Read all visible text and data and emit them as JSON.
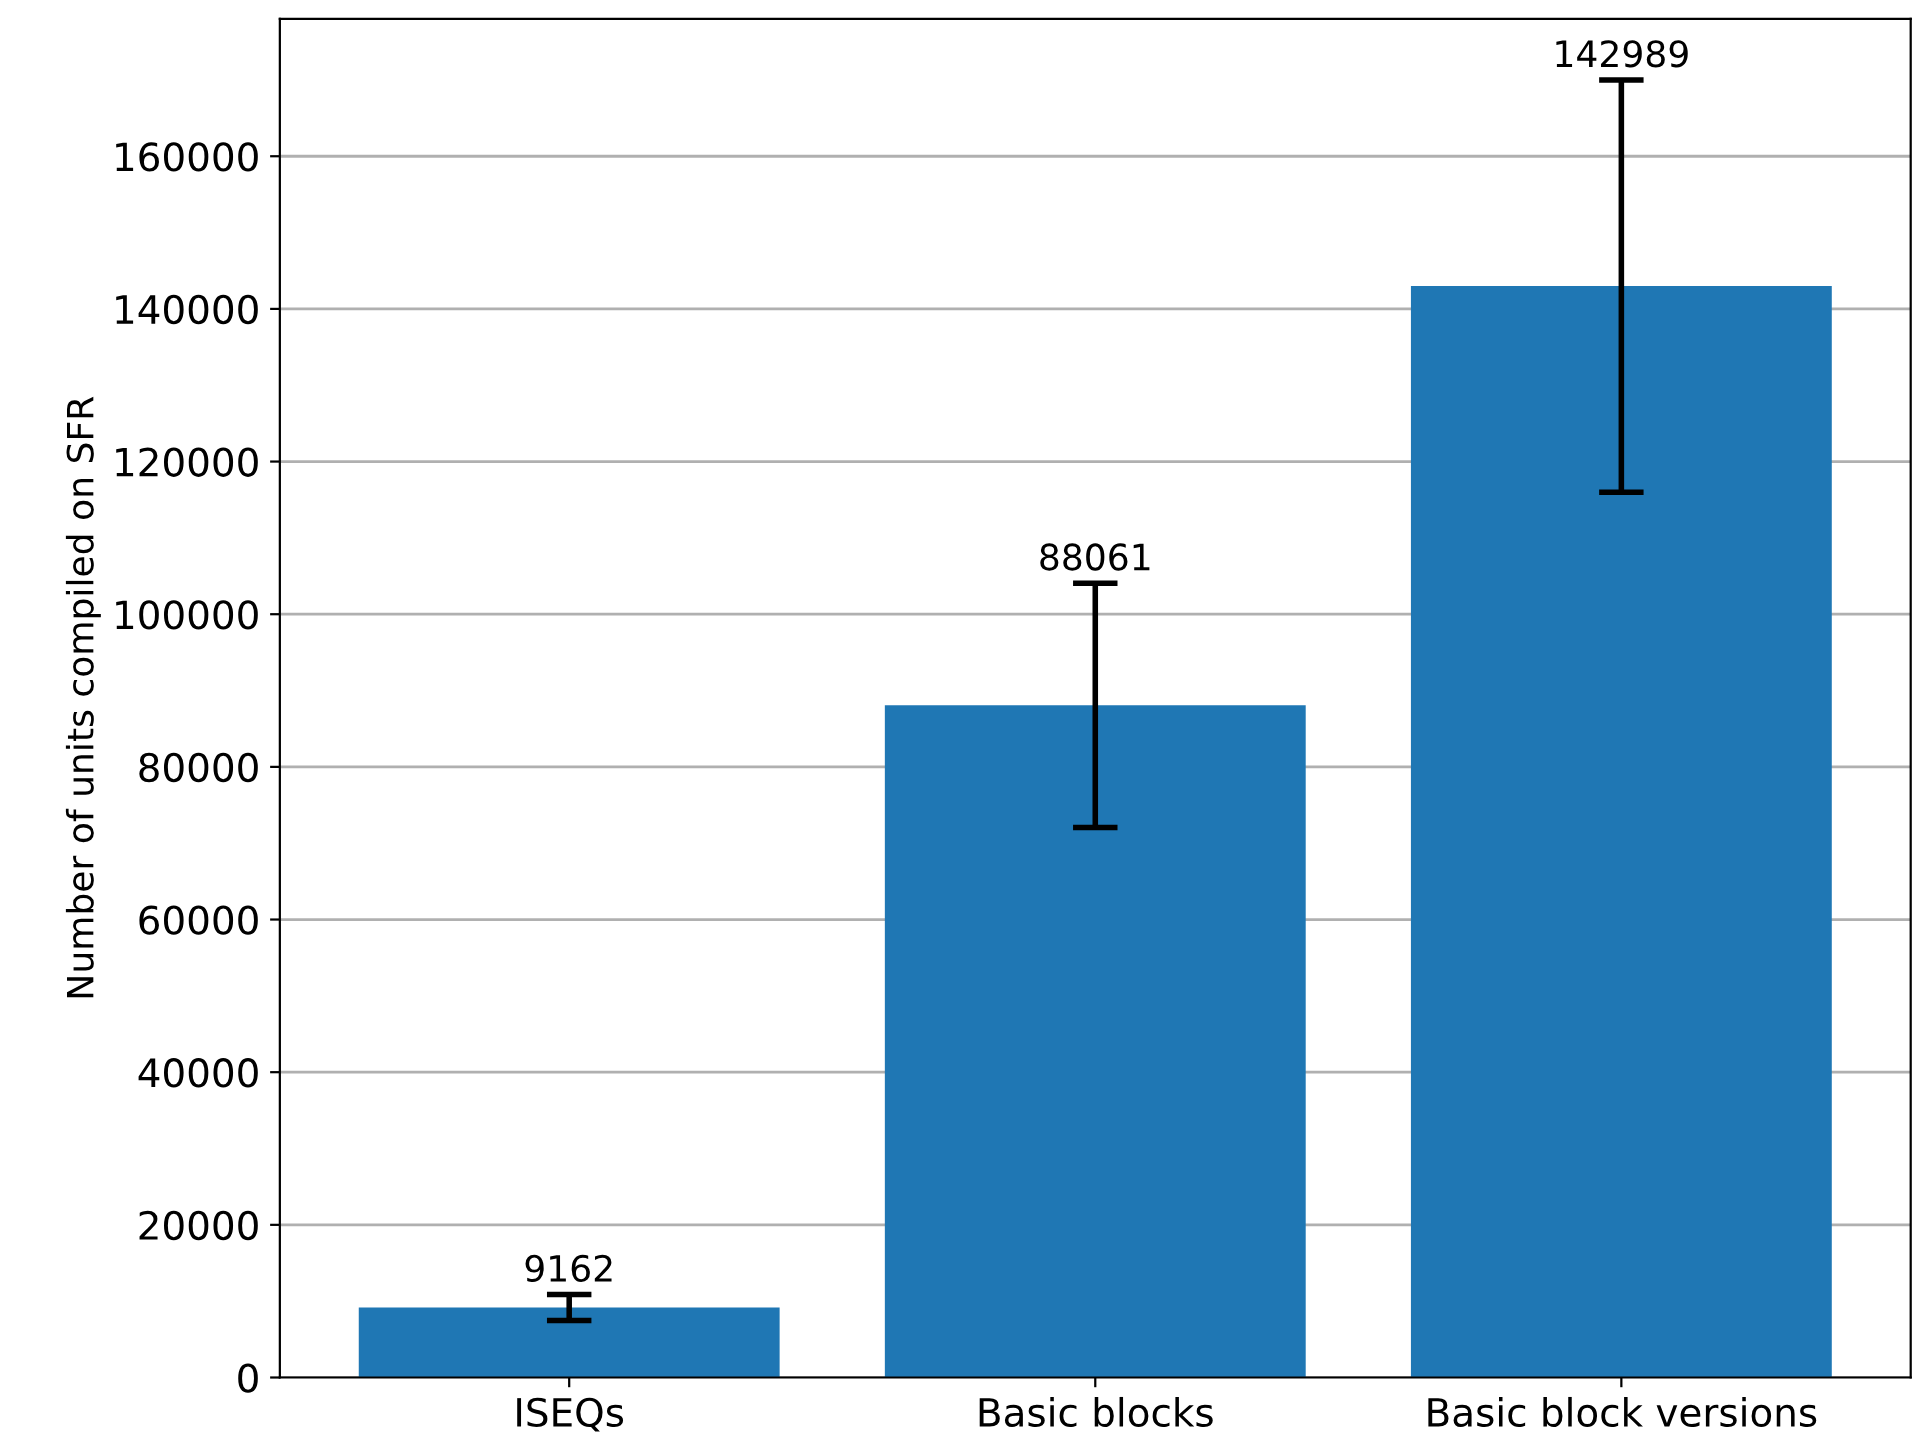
{
  "chart_data": {
    "type": "bar",
    "ylabel": "Number of units compiled on SFR",
    "categories": [
      "ISEQs",
      "Basic blocks",
      "Basic block versions"
    ],
    "values": [
      9162,
      88061,
      142989
    ],
    "errors": [
      1700,
      16000,
      27000
    ],
    "color": "#1f77b4",
    "annotations": [
      {
        "text": "9162",
        "x": "ISEQs",
        "y": 10862
      },
      {
        "text": "88061",
        "x": "Basic blocks",
        "y": 104061
      },
      {
        "text": "142989",
        "x": "Basic block versions",
        "y": 169989
      }
    ],
    "ylim": [
      0,
      178000
    ],
    "yticks": [
      0,
      20000,
      40000,
      60000,
      80000,
      100000,
      120000,
      140000,
      160000
    ],
    "grid": "y"
  }
}
